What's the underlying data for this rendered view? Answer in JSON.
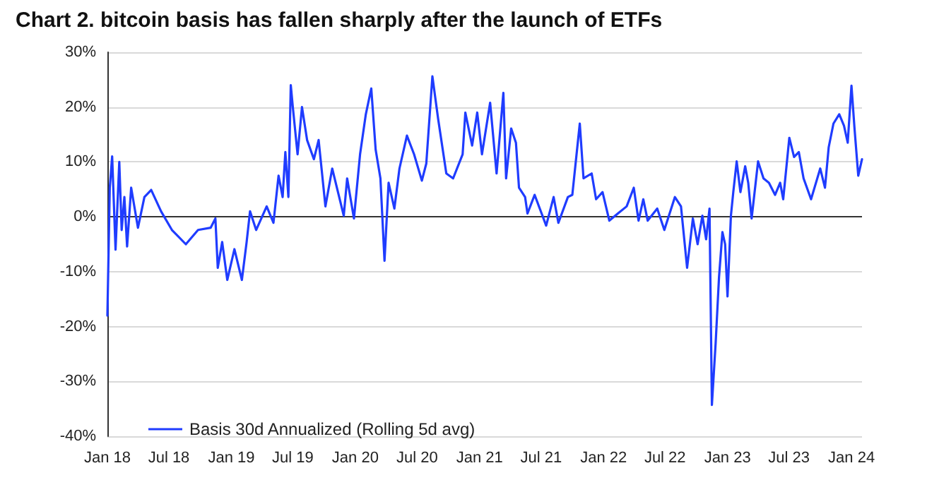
{
  "chart_data": {
    "type": "line",
    "title": "Chart 2. bitcoin basis has fallen sharply after the launch of ETFs",
    "x": [
      "2018-01-01",
      "2018-01-08",
      "2018-01-15",
      "2018-01-25",
      "2018-02-05",
      "2018-02-12",
      "2018-02-20",
      "2018-02-28",
      "2018-03-12",
      "2018-04-01",
      "2018-04-20",
      "2018-05-10",
      "2018-06-08",
      "2018-07-10",
      "2018-08-20",
      "2018-09-25",
      "2018-11-01",
      "2018-11-15",
      "2018-11-22",
      "2018-12-05",
      "2018-12-20",
      "2019-01-10",
      "2019-02-01",
      "2019-02-15",
      "2019-02-25",
      "2019-03-15",
      "2019-04-15",
      "2019-05-05",
      "2019-05-20",
      "2019-06-01",
      "2019-06-09",
      "2019-06-18",
      "2019-06-25",
      "2019-07-01",
      "2019-07-15",
      "2019-07-28",
      "2019-08-12",
      "2019-09-01",
      "2019-09-15",
      "2019-10-05",
      "2019-10-25",
      "2019-11-28",
      "2019-12-08",
      "2019-12-28",
      "2020-01-15",
      "2020-02-01",
      "2020-02-17",
      "2020-03-01",
      "2020-03-15",
      "2020-03-27",
      "2020-04-08",
      "2020-04-25",
      "2020-05-10",
      "2020-06-01",
      "2020-06-22",
      "2020-07-15",
      "2020-07-28",
      "2020-08-15",
      "2020-09-01",
      "2020-09-25",
      "2020-10-15",
      "2020-11-12",
      "2020-11-20",
      "2020-12-10",
      "2020-12-25",
      "2021-01-08",
      "2021-02-01",
      "2021-02-20",
      "2021-03-12",
      "2021-03-20",
      "2021-04-04",
      "2021-04-18",
      "2021-04-27",
      "2021-05-15",
      "2021-05-22",
      "2021-06-12",
      "2021-07-16",
      "2021-08-07",
      "2021-08-21",
      "2021-09-18",
      "2021-10-01",
      "2021-10-23",
      "2021-11-03",
      "2021-11-27",
      "2021-12-10",
      "2021-12-29",
      "2022-01-18",
      "2022-02-12",
      "2022-03-10",
      "2022-03-31",
      "2022-04-14",
      "2022-04-28",
      "2022-05-11",
      "2022-06-08",
      "2022-06-29",
      "2022-07-30",
      "2022-08-17",
      "2022-09-04",
      "2022-09-21",
      "2022-10-05",
      "2022-10-19",
      "2022-10-30",
      "2022-11-09",
      "2022-11-16",
      "2022-11-27",
      "2022-12-07",
      "2022-12-17",
      "2022-12-25",
      "2023-01-01",
      "2023-01-11",
      "2023-01-18",
      "2023-01-28",
      "2023-02-08",
      "2023-02-22",
      "2023-03-03",
      "2023-03-13",
      "2023-04-01",
      "2023-04-17",
      "2023-05-03",
      "2023-05-21",
      "2023-06-05",
      "2023-06-14",
      "2023-07-02",
      "2023-07-16",
      "2023-07-30",
      "2023-08-13",
      "2023-09-04",
      "2023-10-01",
      "2023-10-15",
      "2023-10-26",
      "2023-11-09",
      "2023-11-26",
      "2023-12-10",
      "2023-12-21",
      "2024-01-01",
      "2024-01-10",
      "2024-01-21",
      "2024-02-01"
    ],
    "series": [
      {
        "name": "Basis 30d Annualized (Rolling 5d avg)",
        "color": "#1f3cff",
        "values": [
          -18,
          5.3,
          11,
          -6,
          10,
          -2.4,
          3.6,
          -5.4,
          5.3,
          -2,
          3.6,
          4.9,
          1,
          -2.4,
          -5,
          -2.4,
          -2,
          -0.3,
          -9.3,
          -4.6,
          -11.5,
          -5.9,
          -11.5,
          -4.6,
          1,
          -2.4,
          1.9,
          -1.1,
          7.5,
          3.6,
          11.8,
          3.6,
          24,
          20,
          11.4,
          20,
          14,
          10.5,
          14,
          1.9,
          8.8,
          0.2,
          7,
          -0.3,
          11.4,
          18.7,
          23.4,
          12.2,
          7,
          -8,
          6.2,
          1.5,
          8.8,
          14.8,
          11.4,
          6.6,
          9.7,
          25.6,
          17.8,
          7.9,
          7,
          11.4,
          19,
          13,
          19,
          11.4,
          20.8,
          7.9,
          22.6,
          7,
          16.1,
          13.5,
          5.3,
          3.6,
          0.6,
          4,
          -1.6,
          3.6,
          -1.1,
          3.6,
          4,
          17,
          7,
          7.9,
          3.2,
          4.5,
          -0.7,
          0.6,
          1.9,
          5.3,
          -0.7,
          3.2,
          -0.7,
          1.5,
          -2.4,
          3.6,
          1.9,
          -9.3,
          -0.3,
          -5,
          0.2,
          -4.1,
          1.5,
          -34.3,
          -23.1,
          -11,
          -2.8,
          -5,
          -14.5,
          0.2,
          4.5,
          10.1,
          4.5,
          9.2,
          6.2,
          -0.3,
          10.1,
          7,
          6.2,
          4,
          6.2,
          3.2,
          14.4,
          10.9,
          11.8,
          7,
          3.2,
          8.8,
          5.3,
          12.7,
          17,
          18.7,
          16.6,
          13.5,
          23.9,
          16.1,
          7.5,
          10.5
        ]
      }
    ],
    "xlim": [
      "2018-01-01",
      "2024-02-01"
    ],
    "xticks": [
      {
        "value": "2018-01-01",
        "label": "Jan 18"
      },
      {
        "value": "2018-07-01",
        "label": "Jul 18"
      },
      {
        "value": "2019-01-01",
        "label": "Jan 19"
      },
      {
        "value": "2019-07-01",
        "label": "Jul 19"
      },
      {
        "value": "2020-01-01",
        "label": "Jan 20"
      },
      {
        "value": "2020-07-01",
        "label": "Jul 20"
      },
      {
        "value": "2021-01-01",
        "label": "Jan 21"
      },
      {
        "value": "2021-07-01",
        "label": "Jul 21"
      },
      {
        "value": "2022-01-01",
        "label": "Jan 22"
      },
      {
        "value": "2022-07-01",
        "label": "Jul 22"
      },
      {
        "value": "2023-01-01",
        "label": "Jan 23"
      },
      {
        "value": "2023-07-01",
        "label": "Jul 23"
      },
      {
        "value": "2024-01-01",
        "label": "Jan 24"
      }
    ],
    "ylim": [
      -40,
      30
    ],
    "yticks": [
      {
        "value": -40,
        "label": "-40%"
      },
      {
        "value": -30,
        "label": "-30%"
      },
      {
        "value": -20,
        "label": "-20%"
      },
      {
        "value": -10,
        "label": "-10%"
      },
      {
        "value": 0,
        "label": "0%"
      },
      {
        "value": 10,
        "label": "10%"
      },
      {
        "value": 20,
        "label": "20%"
      },
      {
        "value": 30,
        "label": "30%"
      }
    ],
    "grid": "y",
    "legend": "bottom left",
    "marker": "none",
    "line_style": "solid"
  }
}
